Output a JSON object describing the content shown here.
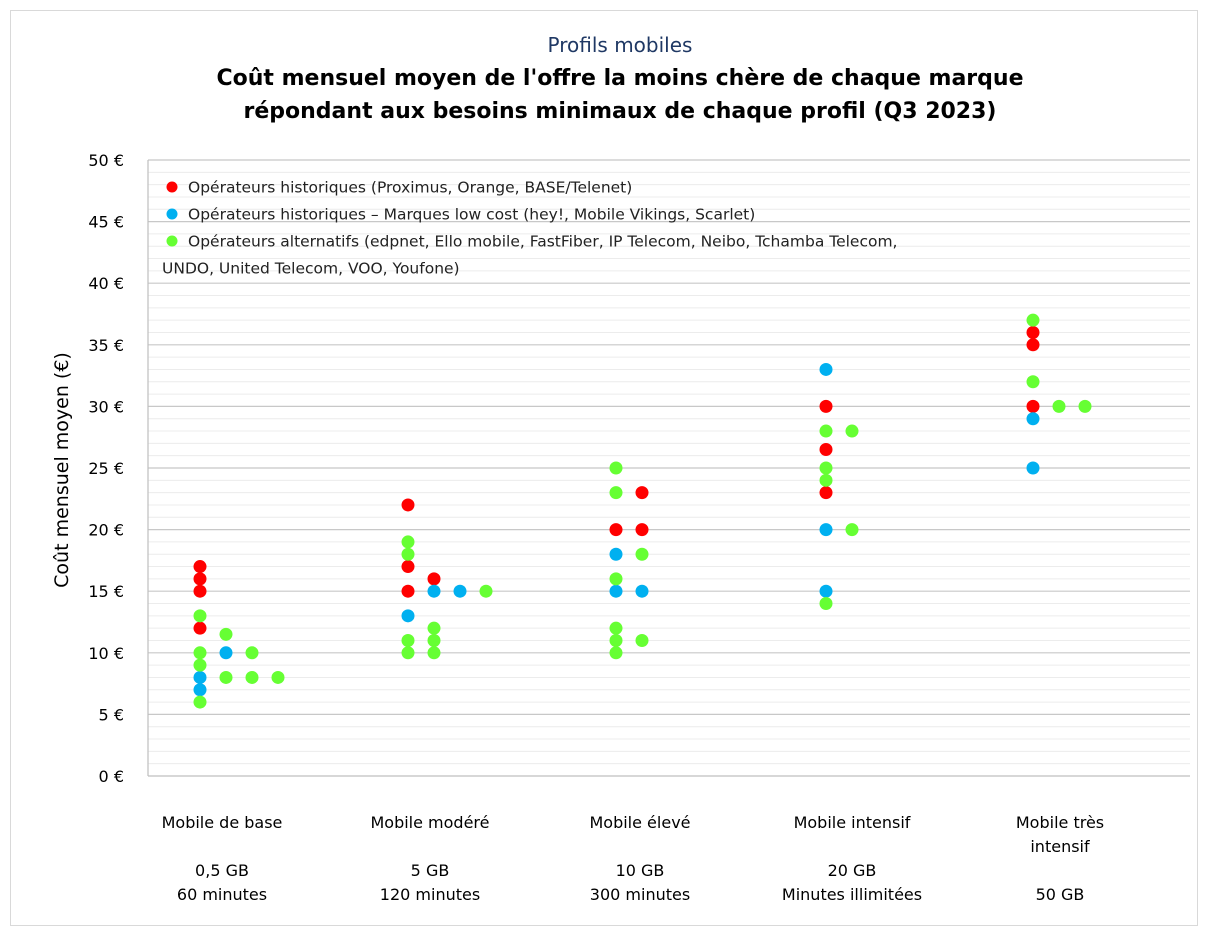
{
  "chart_data": {
    "type": "scatter",
    "subtitle": "Profils mobiles",
    "title_line1": "Coût mensuel moyen de l'offre la moins chère de chaque marque",
    "title_line2": "répondant aux besoins minimaux de chaque profil (Q3 2023)",
    "ylabel": "Coût mensuel moyen (€)",
    "ylim": [
      0,
      50
    ],
    "yticks": [
      0,
      5,
      10,
      15,
      20,
      25,
      30,
      35,
      40,
      45,
      50
    ],
    "ytick_labels": [
      "0 €",
      "5 €",
      "10 €",
      "15 €",
      "20 €",
      "25 €",
      "30 €",
      "35 €",
      "40 €",
      "45 €",
      "50 €"
    ],
    "grid": true,
    "legend_position": "top-left",
    "legend": [
      {
        "color": "#ff0000",
        "text": "Opérateurs historiques (Proximus, Orange, BASE/Telenet)"
      },
      {
        "color": "#00b0f0",
        "text": "Opérateurs historiques – Marques low cost (hey!, Mobile Vikings, Scarlet)"
      },
      {
        "color": "#66ff33",
        "text": "Opérateurs alternatifs (edpnet, Ello mobile, FastFiber, IP Telecom, Neibo, Tchamba Telecom,"
      },
      {
        "color": "",
        "text": "UNDO, United Telecom, VOO, Youfone)"
      }
    ],
    "categories": [
      {
        "name": [
          "Mobile de base",
          ""
        ],
        "details": [
          "0,5 GB",
          "60 minutes"
        ]
      },
      {
        "name": [
          "Mobile modéré",
          ""
        ],
        "details": [
          "5 GB",
          "120 minutes"
        ]
      },
      {
        "name": [
          "Mobile élevé",
          ""
        ],
        "details": [
          "10 GB",
          "300 minutes"
        ]
      },
      {
        "name": [
          "Mobile intensif",
          ""
        ],
        "details": [
          "20 GB",
          "Minutes illimitées"
        ]
      },
      {
        "name": [
          "Mobile très",
          "intensif"
        ],
        "details": [
          "",
          "50 GB"
        ]
      }
    ],
    "series": [
      {
        "group": "historiques",
        "color": "#ff0000",
        "points": [
          {
            "category": 0,
            "slot": 0,
            "value": 17
          },
          {
            "category": 0,
            "slot": 0,
            "value": 16
          },
          {
            "category": 0,
            "slot": 0,
            "value": 15
          },
          {
            "category": 0,
            "slot": 0,
            "value": 12
          },
          {
            "category": 1,
            "slot": 0,
            "value": 22
          },
          {
            "category": 1,
            "slot": 0,
            "value": 17
          },
          {
            "category": 1,
            "slot": 0,
            "value": 15
          },
          {
            "category": 1,
            "slot": 1,
            "value": 16
          },
          {
            "category": 2,
            "slot": 0,
            "value": 20
          },
          {
            "category": 2,
            "slot": 1,
            "value": 23
          },
          {
            "category": 2,
            "slot": 1,
            "value": 20
          },
          {
            "category": 3,
            "slot": 0,
            "value": 30
          },
          {
            "category": 3,
            "slot": 0,
            "value": 26.5
          },
          {
            "category": 3,
            "slot": 0,
            "value": 23
          },
          {
            "category": 4,
            "slot": 0,
            "value": 36
          },
          {
            "category": 4,
            "slot": 0,
            "value": 35
          },
          {
            "category": 4,
            "slot": 0,
            "value": 30
          }
        ]
      },
      {
        "group": "low cost",
        "color": "#00b0f0",
        "points": [
          {
            "category": 0,
            "slot": 0,
            "value": 8
          },
          {
            "category": 0,
            "slot": 0,
            "value": 7
          },
          {
            "category": 0,
            "slot": 1,
            "value": 10
          },
          {
            "category": 1,
            "slot": 0,
            "value": 13
          },
          {
            "category": 1,
            "slot": 1,
            "value": 15
          },
          {
            "category": 1,
            "slot": 2,
            "value": 15
          },
          {
            "category": 2,
            "slot": 0,
            "value": 18
          },
          {
            "category": 2,
            "slot": 0,
            "value": 15
          },
          {
            "category": 2,
            "slot": 1,
            "value": 15
          },
          {
            "category": 3,
            "slot": 0,
            "value": 33
          },
          {
            "category": 3,
            "slot": 0,
            "value": 20
          },
          {
            "category": 3,
            "slot": 0,
            "value": 15
          },
          {
            "category": 4,
            "slot": 0,
            "value": 29
          },
          {
            "category": 4,
            "slot": 0,
            "value": 25
          }
        ]
      },
      {
        "group": "alternatifs",
        "color": "#66ff33",
        "points": [
          {
            "category": 0,
            "slot": 0,
            "value": 13
          },
          {
            "category": 0,
            "slot": 0,
            "value": 10
          },
          {
            "category": 0,
            "slot": 0,
            "value": 9
          },
          {
            "category": 0,
            "slot": 0,
            "value": 6
          },
          {
            "category": 0,
            "slot": 1,
            "value": 11.5
          },
          {
            "category": 0,
            "slot": 1,
            "value": 8
          },
          {
            "category": 0,
            "slot": 2,
            "value": 10
          },
          {
            "category": 0,
            "slot": 2,
            "value": 8
          },
          {
            "category": 0,
            "slot": 3,
            "value": 8
          },
          {
            "category": 1,
            "slot": 0,
            "value": 19
          },
          {
            "category": 1,
            "slot": 0,
            "value": 18
          },
          {
            "category": 1,
            "slot": 0,
            "value": 11
          },
          {
            "category": 1,
            "slot": 0,
            "value": 10
          },
          {
            "category": 1,
            "slot": 1,
            "value": 12
          },
          {
            "category": 1,
            "slot": 1,
            "value": 11
          },
          {
            "category": 1,
            "slot": 1,
            "value": 10
          },
          {
            "category": 1,
            "slot": 3,
            "value": 15
          },
          {
            "category": 2,
            "slot": 0,
            "value": 25
          },
          {
            "category": 2,
            "slot": 0,
            "value": 23
          },
          {
            "category": 2,
            "slot": 0,
            "value": 16
          },
          {
            "category": 2,
            "slot": 0,
            "value": 12
          },
          {
            "category": 2,
            "slot": 0,
            "value": 11
          },
          {
            "category": 2,
            "slot": 0,
            "value": 10
          },
          {
            "category": 2,
            "slot": 1,
            "value": 18
          },
          {
            "category": 2,
            "slot": 1,
            "value": 11
          },
          {
            "category": 3,
            "slot": 0,
            "value": 28
          },
          {
            "category": 3,
            "slot": 0,
            "value": 25
          },
          {
            "category": 3,
            "slot": 0,
            "value": 24
          },
          {
            "category": 3,
            "slot": 0,
            "value": 14
          },
          {
            "category": 3,
            "slot": 1,
            "value": 28
          },
          {
            "category": 3,
            "slot": 1,
            "value": 20
          },
          {
            "category": 4,
            "slot": 0,
            "value": 37
          },
          {
            "category": 4,
            "slot": 0,
            "value": 32
          },
          {
            "category": 4,
            "slot": 1,
            "value": 30
          },
          {
            "category": 4,
            "slot": 2,
            "value": 30
          }
        ]
      }
    ]
  }
}
